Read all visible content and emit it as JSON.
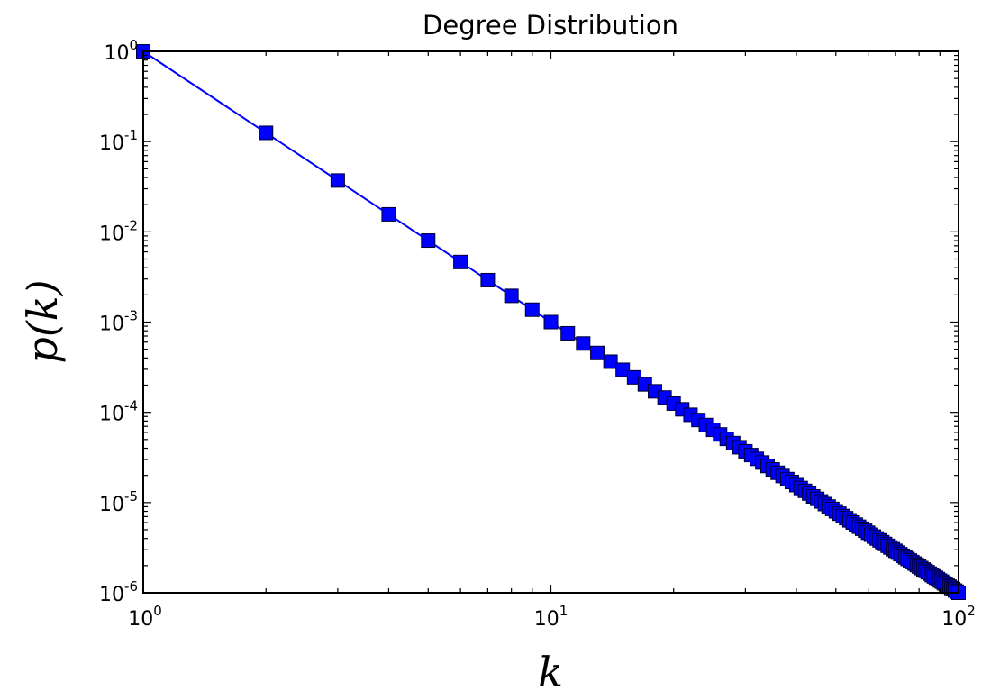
{
  "chart_data": {
    "type": "line",
    "title": "Degree Distribution",
    "xlabel": "k",
    "ylabel": "p(k)",
    "xscale": "log",
    "yscale": "log",
    "xlim": [
      1,
      100
    ],
    "ylim": [
      1e-06,
      1
    ],
    "grid": false,
    "x_ticks": [
      {
        "base": "10",
        "exp": "0",
        "value": 1
      },
      {
        "base": "10",
        "exp": "1",
        "value": 10
      },
      {
        "base": "10",
        "exp": "2",
        "value": 100
      }
    ],
    "y_ticks": [
      {
        "base": "10",
        "exp": "0",
        "value": 1
      },
      {
        "base": "10",
        "exp": "-1",
        "value": 0.1
      },
      {
        "base": "10",
        "exp": "-2",
        "value": 0.01
      },
      {
        "base": "10",
        "exp": "-3",
        "value": 0.001
      },
      {
        "base": "10",
        "exp": "-4",
        "value": 0.0001
      },
      {
        "base": "10",
        "exp": "-5",
        "value": 1e-05
      },
      {
        "base": "10",
        "exp": "-6",
        "value": 1e-06
      }
    ],
    "series": [
      {
        "line_color": "#0000ff",
        "marker": "square",
        "marker_color": "#0000ff",
        "marker_edge_color": "#000033",
        "x": [
          1,
          2,
          3,
          4,
          5,
          6,
          7,
          8,
          9,
          10,
          11,
          12,
          13,
          14,
          15,
          16,
          17,
          18,
          19,
          20,
          21,
          22,
          23,
          24,
          25,
          26,
          27,
          28,
          29,
          30,
          31,
          32,
          33,
          34,
          35,
          36,
          37,
          38,
          39,
          40,
          41,
          42,
          43,
          44,
          45,
          46,
          47,
          48,
          49,
          50,
          51,
          52,
          53,
          54,
          55,
          56,
          57,
          58,
          59,
          60,
          61,
          62,
          63,
          64,
          65,
          66,
          67,
          68,
          69,
          70,
          71,
          72,
          73,
          74,
          75,
          76,
          77,
          78,
          79,
          80,
          81,
          82,
          83,
          84,
          85,
          86,
          87,
          88,
          89,
          90,
          91,
          92,
          93,
          94,
          95,
          96,
          97,
          98,
          99,
          100
        ],
        "y": [
          1,
          0.125,
          0.037037,
          0.015625,
          0.008,
          0.00463,
          0.002915,
          0.001953,
          0.001372,
          0.001,
          0.000751,
          0.000579,
          0.000455,
          0.000364,
          0.000296,
          0.000244,
          0.000204,
          0.000171,
          0.000146,
          0.000125,
          0.000108,
          9.39e-05,
          8.22e-05,
          7.23e-05,
          6.4e-05,
          5.69e-05,
          5.08e-05,
          4.56e-05,
          4.1e-05,
          3.7e-05,
          3.36e-05,
          3.05e-05,
          2.78e-05,
          2.54e-05,
          2.33e-05,
          2.14e-05,
          1.97e-05,
          1.82e-05,
          1.69e-05,
          1.56e-05,
          1.45e-05,
          1.35e-05,
          1.26e-05,
          1.17e-05,
          1.1e-05,
          1.03e-05,
          9.63e-06,
          9.04e-06,
          8.5e-06,
          8e-06,
          7.54e-06,
          7.11e-06,
          6.72e-06,
          6.35e-06,
          6.01e-06,
          5.69e-06,
          5.4e-06,
          5.13e-06,
          4.87e-06,
          4.63e-06,
          4.4e-06,
          4.2e-06,
          4e-06,
          3.81e-06,
          3.64e-06,
          3.48e-06,
          3.32e-06,
          3.18e-06,
          3.04e-06,
          2.92e-06,
          2.79e-06,
          2.68e-06,
          2.57e-06,
          2.47e-06,
          2.37e-06,
          2.28e-06,
          2.19e-06,
          2.11e-06,
          2.03e-06,
          1.95e-06,
          1.88e-06,
          1.81e-06,
          1.75e-06,
          1.69e-06,
          1.63e-06,
          1.57e-06,
          1.52e-06,
          1.47e-06,
          1.42e-06,
          1.37e-06,
          1.33e-06,
          1.28e-06,
          1.24e-06,
          1.2e-06,
          1.17e-06,
          1.13e-06,
          1.1e-06,
          1.06e-06,
          1.03e-06,
          1e-06
        ]
      }
    ]
  }
}
